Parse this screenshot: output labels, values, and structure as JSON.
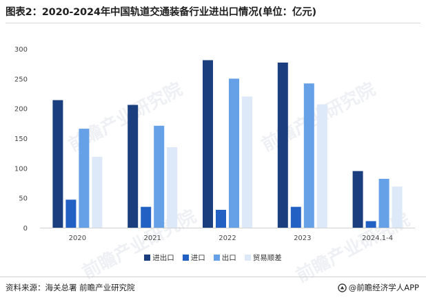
{
  "title": "图表2：2020-2024年中国轨道交通装备行业进出口情况(单位：亿元)",
  "footer": {
    "source": "资料来源：海关总署 前瞻产业研究院",
    "brand": "@前瞻经济学人APP"
  },
  "watermark": "前瞻产业研究院",
  "colors": {
    "import_export": "#1b3f7e",
    "import": "#2260c4",
    "export": "#66a0e6",
    "surplus": "#dde8f8"
  },
  "chart_data": {
    "type": "bar",
    "categories": [
      "2020",
      "2021",
      "2022",
      "2023",
      "2024.1-4"
    ],
    "series": [
      {
        "name": "进出口",
        "values": [
          214,
          206,
          281,
          277,
          95
        ]
      },
      {
        "name": "进口",
        "values": [
          47,
          35,
          30,
          35,
          11
        ]
      },
      {
        "name": "出口",
        "values": [
          166,
          171,
          250,
          242,
          82
        ]
      },
      {
        "name": "贸易顺差",
        "values": [
          119,
          135,
          220,
          207,
          69
        ]
      }
    ],
    "ylim": [
      0,
      300
    ],
    "yticks": [
      "0",
      "50",
      "100",
      "150",
      "200",
      "250",
      "300"
    ],
    "grid": false,
    "legend": "bottom"
  }
}
